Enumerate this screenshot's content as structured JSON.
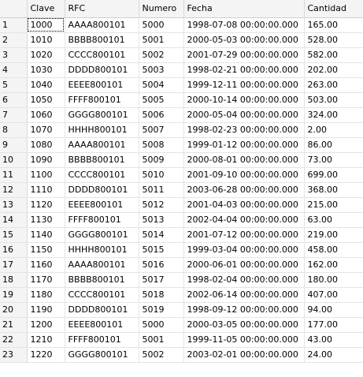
{
  "grid": {
    "columns": [
      "Clave",
      "RFC",
      "Numero",
      "Fecha",
      "Cantidad"
    ],
    "rows": [
      {
        "n": "1",
        "clave": "1000",
        "rfc": "AAAA800101",
        "numero": "5000",
        "fecha": "1998-07-08 00:00:00.000",
        "cantidad": "165.00"
      },
      {
        "n": "2",
        "clave": "1010",
        "rfc": "BBBB800101",
        "numero": "5001",
        "fecha": "2000-05-03 00:00:00.000",
        "cantidad": "528.00"
      },
      {
        "n": "3",
        "clave": "1020",
        "rfc": "CCCC800101",
        "numero": "5002",
        "fecha": "2001-07-29 00:00:00.000",
        "cantidad": "582.00"
      },
      {
        "n": "4",
        "clave": "1030",
        "rfc": "DDDD800101",
        "numero": "5003",
        "fecha": "1998-02-21 00:00:00.000",
        "cantidad": "202.00"
      },
      {
        "n": "5",
        "clave": "1040",
        "rfc": "EEEE800101",
        "numero": "5004",
        "fecha": "1999-12-11 00:00:00.000",
        "cantidad": "263.00"
      },
      {
        "n": "6",
        "clave": "1050",
        "rfc": "FFFF800101",
        "numero": "5005",
        "fecha": "2000-10-14 00:00:00.000",
        "cantidad": "503.00"
      },
      {
        "n": "7",
        "clave": "1060",
        "rfc": "GGGG800101",
        "numero": "5006",
        "fecha": "2000-05-04 00:00:00.000",
        "cantidad": "324.00"
      },
      {
        "n": "8",
        "clave": "1070",
        "rfc": "HHHH800101",
        "numero": "5007",
        "fecha": "1998-02-23 00:00:00.000",
        "cantidad": "2.00"
      },
      {
        "n": "9",
        "clave": "1080",
        "rfc": "AAAA800101",
        "numero": "5008",
        "fecha": "1999-01-12 00:00:00.000",
        "cantidad": "86.00"
      },
      {
        "n": "10",
        "clave": "1090",
        "rfc": "BBBB800101",
        "numero": "5009",
        "fecha": "2000-08-01 00:00:00.000",
        "cantidad": "73.00"
      },
      {
        "n": "11",
        "clave": "1100",
        "rfc": "CCCC800101",
        "numero": "5010",
        "fecha": "2001-09-10 00:00:00.000",
        "cantidad": "699.00"
      },
      {
        "n": "12",
        "clave": "1110",
        "rfc": "DDDD800101",
        "numero": "5011",
        "fecha": "2003-06-28 00:00:00.000",
        "cantidad": "368.00"
      },
      {
        "n": "13",
        "clave": "1120",
        "rfc": "EEEE800101",
        "numero": "5012",
        "fecha": "2001-04-03 00:00:00.000",
        "cantidad": "215.00"
      },
      {
        "n": "14",
        "clave": "1130",
        "rfc": "FFFF800101",
        "numero": "5013",
        "fecha": "2002-04-04 00:00:00.000",
        "cantidad": "63.00"
      },
      {
        "n": "15",
        "clave": "1140",
        "rfc": "GGGG800101",
        "numero": "5014",
        "fecha": "2001-07-12 00:00:00.000",
        "cantidad": "219.00"
      },
      {
        "n": "16",
        "clave": "1150",
        "rfc": "HHHH800101",
        "numero": "5015",
        "fecha": "1999-03-04 00:00:00.000",
        "cantidad": "458.00"
      },
      {
        "n": "17",
        "clave": "1160",
        "rfc": "AAAA800101",
        "numero": "5016",
        "fecha": "2000-06-01 00:00:00.000",
        "cantidad": "162.00"
      },
      {
        "n": "18",
        "clave": "1170",
        "rfc": "BBBB800101",
        "numero": "5017",
        "fecha": "1998-02-04 00:00:00.000",
        "cantidad": "180.00"
      },
      {
        "n": "19",
        "clave": "1180",
        "rfc": "CCCC800101",
        "numero": "5018",
        "fecha": "2002-06-14 00:00:00.000",
        "cantidad": "407.00"
      },
      {
        "n": "20",
        "clave": "1190",
        "rfc": "DDDD800101",
        "numero": "5019",
        "fecha": "1998-09-12 00:00:00.000",
        "cantidad": "94.00"
      },
      {
        "n": "21",
        "clave": "1200",
        "rfc": "EEEE800101",
        "numero": "5000",
        "fecha": "2000-03-05 00:00:00.000",
        "cantidad": "177.00"
      },
      {
        "n": "22",
        "clave": "1210",
        "rfc": "FFFF800101",
        "numero": "5001",
        "fecha": "1999-11-05 00:00:00.000",
        "cantidad": "43.00"
      },
      {
        "n": "23",
        "clave": "1220",
        "rfc": "GGGG800101",
        "numero": "5002",
        "fecha": "2003-02-01 00:00:00.000",
        "cantidad": "24.00"
      }
    ]
  }
}
